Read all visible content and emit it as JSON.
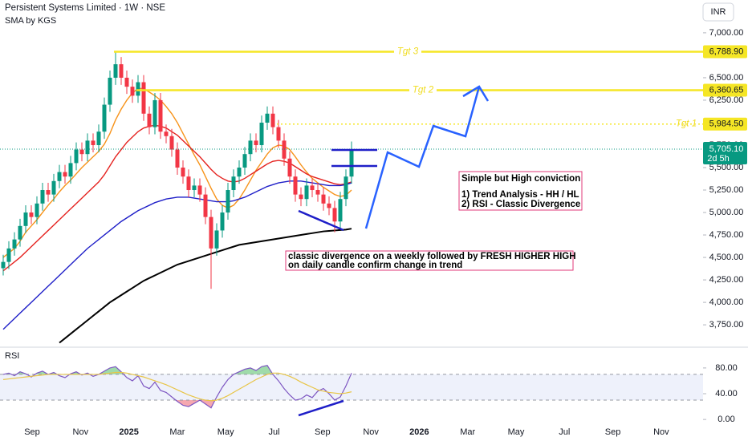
{
  "header": {
    "title": "Persistent Systems Limited · 1W · NSE",
    "indicator": "SMA by KGS",
    "currency": "INR"
  },
  "chart_data": [
    {
      "type": "candlestick",
      "up_color": "#089981",
      "down_color": "#f23645",
      "open": [
        4380,
        4450,
        4600,
        4700,
        4850,
        5000,
        4950,
        5100,
        5250,
        5200,
        5350,
        5450,
        5400,
        5550,
        5700,
        5650,
        5800,
        5750,
        5900,
        6200,
        6500,
        6650,
        6500,
        6400,
        6300,
        6450,
        6100,
        5950,
        6250,
        5900,
        5850,
        5700,
        5500,
        5400,
        5250,
        5300,
        5200,
        4950,
        4600,
        4800,
        5000,
        5250,
        5400,
        5500,
        5650,
        5800,
        5750,
        6000,
        6100,
        5950,
        5800,
        5600,
        5400,
        5200,
        5150,
        5300,
        5250,
        5200,
        5100,
        5050,
        4900,
        5150,
        5400
      ],
      "high": [
        4530,
        4680,
        4780,
        4930,
        5080,
        5080,
        5180,
        5330,
        5330,
        5430,
        5530,
        5530,
        5630,
        5780,
        5780,
        5880,
        5880,
        5980,
        6280,
        6580,
        6789,
        6730,
        6580,
        6480,
        6530,
        6530,
        6180,
        6330,
        6330,
        5980,
        5930,
        5780,
        5580,
        5480,
        5380,
        5380,
        5280,
        5030,
        4880,
        5080,
        5330,
        5480,
        5580,
        5730,
        5880,
        5880,
        6080,
        6180,
        6180,
        6030,
        5880,
        5680,
        5480,
        5280,
        5380,
        5380,
        5330,
        5280,
        5180,
        5130,
        5230,
        5480,
        5790
      ],
      "low": [
        4300,
        4370,
        4520,
        4620,
        4770,
        4870,
        4870,
        5020,
        5120,
        5120,
        5270,
        5320,
        5320,
        5470,
        5570,
        5570,
        5670,
        5670,
        5820,
        6120,
        6420,
        6420,
        6320,
        6220,
        6220,
        6020,
        5870,
        5870,
        5820,
        5770,
        5620,
        5420,
        5320,
        5170,
        5170,
        5120,
        4870,
        4150,
        4520,
        4720,
        4920,
        5170,
        5320,
        5420,
        5570,
        5670,
        5670,
        5920,
        5870,
        5720,
        5520,
        5320,
        5120,
        5070,
        5070,
        5170,
        5120,
        5020,
        4970,
        4780,
        4820,
        5070,
        5320
      ],
      "close": [
        4450,
        4600,
        4700,
        4850,
        5000,
        4950,
        5100,
        5250,
        5200,
        5350,
        5450,
        5400,
        5550,
        5700,
        5650,
        5800,
        5750,
        5900,
        6200,
        6500,
        6650,
        6500,
        6400,
        6300,
        6450,
        6100,
        5950,
        6250,
        5900,
        5850,
        5700,
        5500,
        5400,
        5250,
        5300,
        5200,
        4950,
        4600,
        4800,
        5000,
        5250,
        5400,
        5500,
        5650,
        5800,
        5750,
        6000,
        6100,
        5950,
        5800,
        5600,
        5400,
        5200,
        5150,
        5300,
        5250,
        5200,
        5100,
        5050,
        4900,
        5150,
        5400,
        5705.1
      ],
      "overlays": [
        {
          "color": "#f7931a",
          "values": [
            4500,
            4550,
            4600,
            4680,
            4780,
            4850,
            4920,
            5000,
            5080,
            5150,
            5230,
            5300,
            5360,
            5430,
            5500,
            5560,
            5620,
            5680,
            5760,
            5880,
            6030,
            6150,
            6250,
            6330,
            6380,
            6380,
            6340,
            6300,
            6250,
            6180,
            6100,
            6000,
            5880,
            5760,
            5640,
            5530,
            5400,
            5270,
            5150,
            5080,
            5050,
            5080,
            5150,
            5250,
            5360,
            5470,
            5560,
            5650,
            5720,
            5750,
            5740,
            5700,
            5620,
            5530,
            5450,
            5380,
            5330,
            5280,
            5240,
            5200,
            5180,
            5190,
            5250
          ]
        },
        {
          "color": "#e5221f",
          "values": [
            4350,
            4400,
            4450,
            4500,
            4560,
            4620,
            4680,
            4740,
            4800,
            4860,
            4920,
            4980,
            5040,
            5100,
            5160,
            5220,
            5280,
            5340,
            5420,
            5520,
            5620,
            5700,
            5780,
            5840,
            5900,
            5940,
            5960,
            5970,
            5960,
            5940,
            5900,
            5860,
            5800,
            5740,
            5680,
            5620,
            5550,
            5480,
            5420,
            5380,
            5350,
            5340,
            5350,
            5380,
            5420,
            5460,
            5500,
            5540,
            5570,
            5580,
            5570,
            5550,
            5510,
            5470,
            5430,
            5400,
            5380,
            5360,
            5340,
            5320,
            5310,
            5320,
            5340
          ]
        },
        {
          "color": "#1f1fc8",
          "values": [
            3700,
            3760,
            3820,
            3880,
            3940,
            4000,
            4060,
            4120,
            4180,
            4240,
            4300,
            4360,
            4420,
            4480,
            4540,
            4600,
            4650,
            4700,
            4750,
            4800,
            4850,
            4900,
            4940,
            4980,
            5020,
            5050,
            5080,
            5110,
            5130,
            5150,
            5160,
            5170,
            5170,
            5170,
            5160,
            5150,
            5140,
            5130,
            5120,
            5120,
            5120,
            5130,
            5150,
            5170,
            5200,
            5230,
            5260,
            5290,
            5310,
            5330,
            5340,
            5350,
            5350,
            5350,
            5340,
            5330,
            5320,
            5310,
            5300,
            5300,
            5300,
            5310,
            5330
          ]
        },
        {
          "color": "#000000",
          "values": [
            null,
            null,
            null,
            null,
            null,
            null,
            null,
            null,
            null,
            null,
            3550,
            3600,
            3650,
            3700,
            3750,
            3800,
            3850,
            3900,
            3950,
            4000,
            4040,
            4080,
            4120,
            4160,
            4200,
            4240,
            4270,
            4300,
            4330,
            4360,
            4390,
            4420,
            4440,
            4460,
            4480,
            4500,
            4520,
            4540,
            4560,
            4580,
            4600,
            4620,
            4640,
            4650,
            4660,
            4670,
            4680,
            4690,
            4700,
            4710,
            4720,
            4730,
            4740,
            4750,
            4760,
            4770,
            4780,
            4790,
            4795,
            4800,
            4805,
            4810,
            4820
          ]
        }
      ],
      "last_price": {
        "value": 5705.1,
        "label": "5,705.10",
        "countdown": "2d 5h"
      },
      "targets": [
        {
          "label": "Tgt 3",
          "value": 6788.9,
          "value_label": "6,788.90"
        },
        {
          "label": "Tgt 2",
          "value": 6360.65,
          "value_label": "6,360.65"
        },
        {
          "label": "Tgt 1",
          "value": 5984.5,
          "value_label": "5,984.50"
        }
      ],
      "notes": [
        [
          "Simple but High conviction",
          "1) Trend Analysis -  HH / HL",
          "2) RSI - Classic Divergence"
        ],
        [
          "classic divergence on a weekly followed by FRESH HIGHER HIGH",
          "on daily candle confirm change in trend"
        ]
      ],
      "ylim": [
        3510,
        7365
      ],
      "yticks": [
        {
          "value": 7000,
          "label": "7,000.00"
        },
        {
          "value": 6500,
          "label": "6,500.00"
        },
        {
          "value": 6250,
          "label": "6,250.00"
        },
        {
          "value": 5750,
          "label": "5,750.00"
        },
        {
          "value": 5500,
          "label": "5,500.00"
        },
        {
          "value": 5250,
          "label": "5,250.00"
        },
        {
          "value": 5000,
          "label": "5,000.00"
        },
        {
          "value": 4750,
          "label": "4,750.00"
        },
        {
          "value": 4500,
          "label": "4,500.00"
        },
        {
          "value": 4250,
          "label": "4,250.00"
        },
        {
          "value": 4000,
          "label": "4,000.00"
        },
        {
          "value": 3750,
          "label": "3,750.00"
        }
      ],
      "x_labels": [
        "Sep",
        "Nov",
        "2025",
        "Mar",
        "May",
        "Jul",
        "Sep",
        "Nov",
        "2026",
        "Mar",
        "May",
        "Jul",
        "Sep",
        "Nov"
      ]
    },
    {
      "type": "line",
      "title": "RSI",
      "series": [
        {
          "color": "#7e57c2",
          "values": [
            70,
            72,
            68,
            74,
            71,
            66,
            72,
            75,
            70,
            73,
            68,
            65,
            71,
            74,
            69,
            72,
            67,
            70,
            75,
            80,
            82,
            74,
            65,
            60,
            68,
            52,
            48,
            58,
            45,
            42,
            35,
            28,
            22,
            20,
            25,
            30,
            24,
            18,
            35,
            50,
            62,
            70,
            74,
            78,
            80,
            76,
            82,
            84,
            70,
            60,
            48,
            38,
            30,
            32,
            38,
            34,
            44,
            48,
            40,
            30,
            35,
            52,
            72
          ]
        },
        {
          "color": "#e8c547",
          "values": [
            62,
            63,
            64,
            65,
            66,
            67,
            68,
            69,
            70,
            70,
            70,
            70,
            70,
            70,
            70,
            70,
            70,
            70,
            71,
            72,
            73,
            73,
            72,
            70,
            68,
            66,
            63,
            60,
            57,
            54,
            50,
            46,
            42,
            38,
            35,
            32,
            30,
            29,
            30,
            33,
            37,
            42,
            47,
            52,
            57,
            62,
            66,
            70,
            72,
            72,
            70,
            67,
            63,
            58,
            54,
            50,
            46,
            44,
            42,
            41,
            40,
            41,
            43
          ]
        }
      ],
      "levels": [
        70,
        30
      ],
      "ylim": [
        -21,
        111
      ],
      "yticks": [
        {
          "value": 80,
          "label": "80.00"
        },
        {
          "value": 40,
          "label": "40.00"
        },
        {
          "value": 0,
          "label": "0.00"
        }
      ]
    }
  ]
}
